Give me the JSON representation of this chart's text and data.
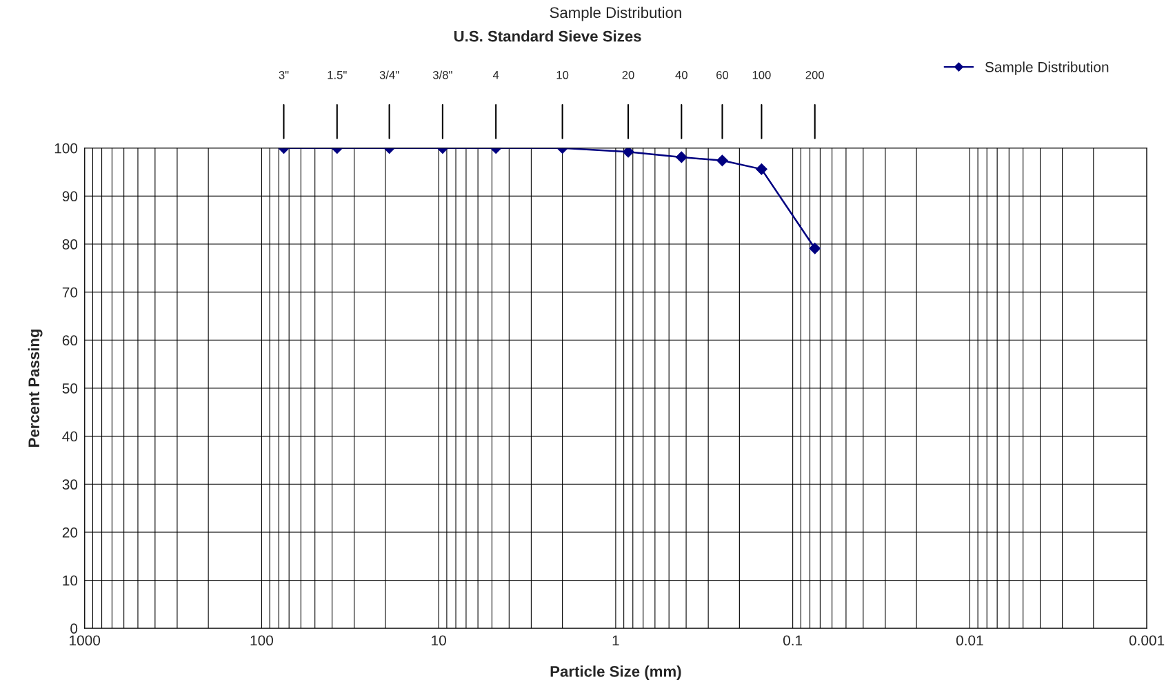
{
  "chart_data": {
    "type": "line",
    "title": "Sample Distribution",
    "subtitle": "U.S. Standard Sieve Sizes",
    "xlabel": "Particle Size (mm)",
    "ylabel": "Percent Passing",
    "x": [
      75,
      37.5,
      19,
      9.5,
      4.75,
      2.0,
      0.85,
      0.425,
      0.25,
      0.15,
      0.075
    ],
    "series": [
      {
        "name": "Sample Distribution",
        "color": "#000080",
        "values": [
          100,
          100,
          100,
          100,
          100,
          100,
          99.2,
          98.1,
          97.4,
          95.6,
          79.1
        ]
      }
    ],
    "log": "x",
    "xlim": [
      1000,
      0.001
    ],
    "xticks": [
      1000,
      100,
      10,
      1,
      0.1,
      0.01,
      0.001
    ],
    "ylim": [
      0,
      100
    ],
    "yticks": [
      0,
      10,
      20,
      30,
      40,
      50,
      60,
      70,
      80,
      90,
      100
    ],
    "annotations": [
      "3\"",
      "1.5\"",
      "3/4\"",
      "3/8\"",
      "4",
      "10",
      "20",
      "40",
      "60",
      "100",
      "200"
    ],
    "grid": true,
    "legend": "top right",
    "marker": "diamond",
    "line_style": "solid"
  }
}
